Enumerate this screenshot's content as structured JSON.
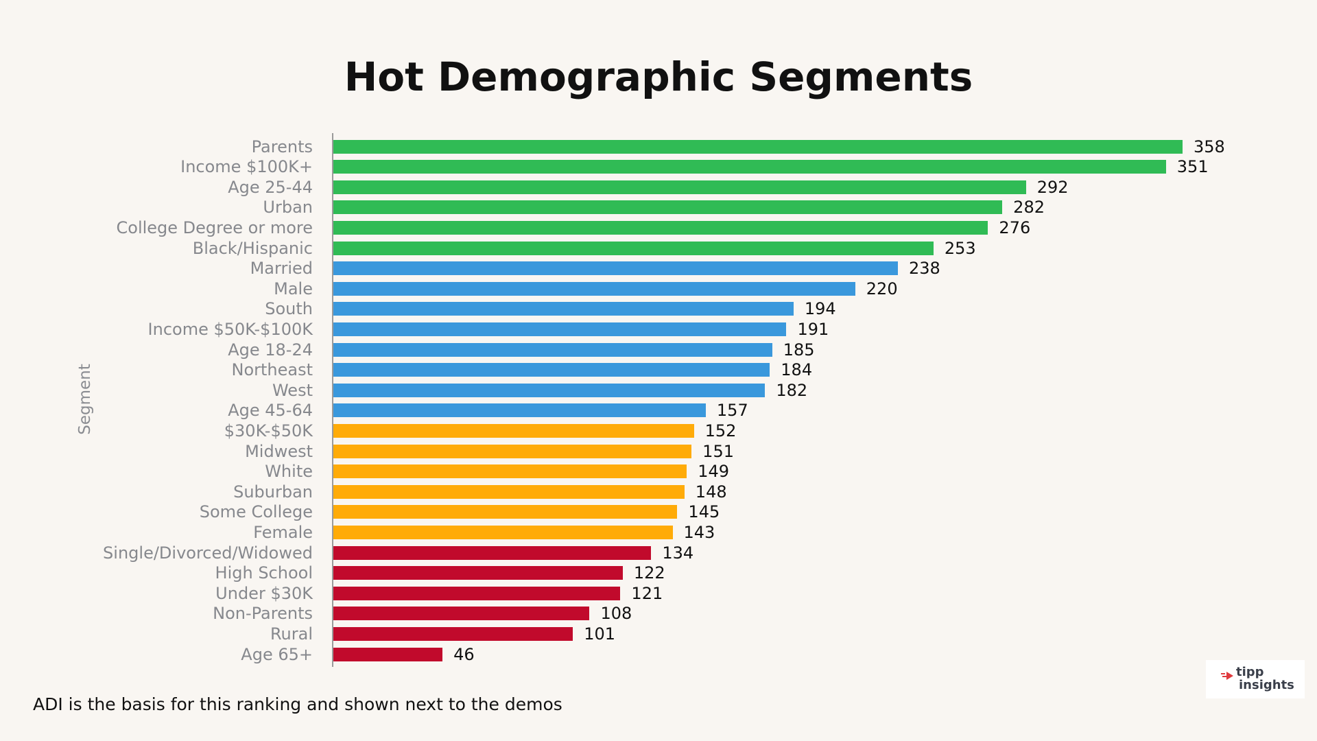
{
  "chart_data": {
    "type": "bar",
    "orientation": "horizontal",
    "title": "Hot Demographic Segments",
    "ylabel": "Segment",
    "xlabel": "",
    "xlim": [
      0,
      358
    ],
    "grid": false,
    "categories": [
      "Parents",
      "Income $100K+",
      "Age 25-44",
      "Urban",
      "College Degree or more",
      "Black/Hispanic",
      "Married",
      "Male",
      "South",
      "Income $50K-$100K",
      "Age 18-24",
      "Northeast",
      "West",
      "Age 45-64",
      "$30K-$50K",
      "Midwest",
      "White",
      "Suburban",
      "Some College",
      "Female",
      "Single/Divorced/Widowed",
      "High School",
      "Under $30K",
      "Non-Parents",
      "Rural",
      "Age 65+"
    ],
    "values": [
      358,
      351,
      292,
      282,
      276,
      253,
      238,
      220,
      194,
      191,
      185,
      184,
      182,
      157,
      152,
      151,
      149,
      148,
      145,
      143,
      134,
      122,
      121,
      108,
      101,
      46
    ],
    "bar_colors": [
      "#30bb55",
      "#30bb55",
      "#30bb55",
      "#30bb55",
      "#30bb55",
      "#30bb55",
      "#3a98dc",
      "#3a98dc",
      "#3a98dc",
      "#3a98dc",
      "#3a98dc",
      "#3a98dc",
      "#3a98dc",
      "#3a98dc",
      "#ffab08",
      "#ffab08",
      "#ffab08",
      "#ffab08",
      "#ffab08",
      "#ffab08",
      "#c10a2c",
      "#c10a2c",
      "#c10a2c",
      "#c10a2c",
      "#c10a2c",
      "#c10a2c"
    ],
    "data_labels": true
  },
  "footnote": "ADI is the basis for this ranking and shown next to the demos",
  "logo": {
    "line1": "tipp",
    "line2": "insights",
    "icon": "speed-arrow-icon",
    "accent": "#e03a3e"
  }
}
